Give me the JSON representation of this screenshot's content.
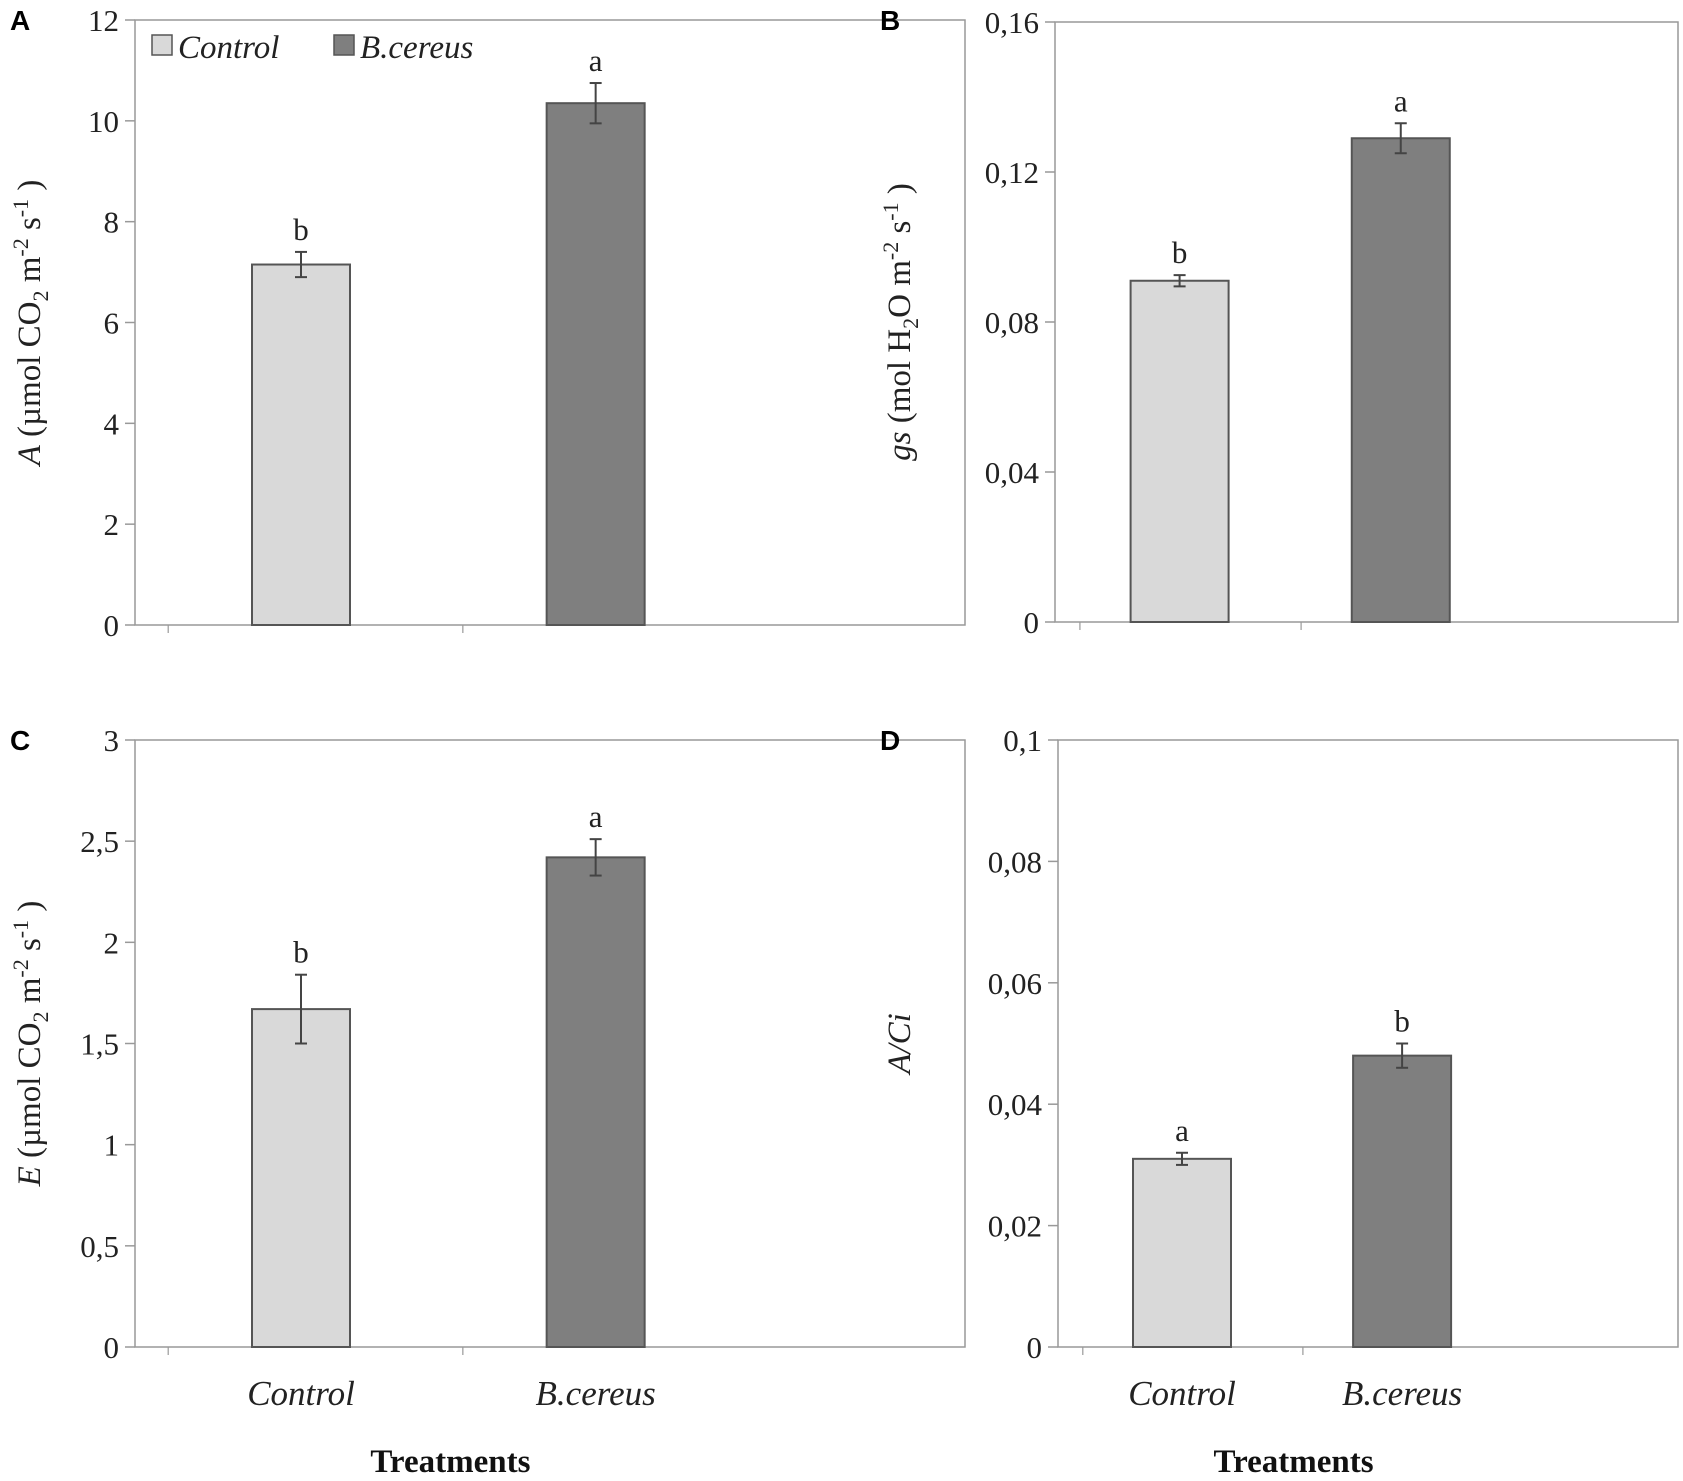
{
  "colors": {
    "control": "#d9d9d9",
    "bcereus": "#7f7f7f",
    "bar_border": "#555555",
    "axis": "#999999",
    "error_bar": "#444444"
  },
  "x_axis_label": "Treatments",
  "legend": [
    "Control",
    "B.cereus"
  ],
  "chart_data": [
    {
      "type": "bar",
      "panel": "A",
      "categories": [
        "Control",
        "B.cereus"
      ],
      "values": [
        7.15,
        10.35
      ],
      "errors": [
        0.25,
        0.4
      ],
      "significance": [
        "b",
        "a"
      ],
      "ylabel": {
        "symbol": "A",
        "unit_pre": " (µmol CO",
        "sub": "2",
        "unit_mid": " m",
        "sup1": "-2",
        "unit_post": " s",
        "sup2": "-1",
        "tail": " )"
      },
      "ylim": [
        0,
        12
      ],
      "yticks": [
        0,
        2,
        4,
        6,
        8,
        10,
        12
      ],
      "ytick_labels": [
        "0",
        "2",
        "4",
        "6",
        "8",
        "10",
        "12"
      ],
      "grid": false
    },
    {
      "type": "bar",
      "panel": "B",
      "categories": [
        "Control",
        "B.cereus"
      ],
      "values": [
        0.091,
        0.129
      ],
      "errors": [
        0.0015,
        0.004
      ],
      "significance": [
        "b",
        "a"
      ],
      "ylabel": {
        "symbol": "gs",
        "unit_pre": " (mol H",
        "sub": "2",
        "unit_mid": "O m",
        "sup1": "-2",
        "unit_post": " s",
        "sup2": "-1",
        "tail": " )"
      },
      "ylim": [
        0,
        0.16
      ],
      "yticks": [
        0,
        0.04,
        0.08,
        0.12,
        0.16
      ],
      "ytick_labels": [
        "0",
        "0,04",
        "0,08",
        "0,12",
        "0,16"
      ],
      "grid": false
    },
    {
      "type": "bar",
      "panel": "C",
      "categories": [
        "Control",
        "B.cereus"
      ],
      "values": [
        1.67,
        2.42
      ],
      "errors": [
        0.17,
        0.09
      ],
      "significance": [
        "b",
        "a"
      ],
      "ylabel": {
        "symbol": "E",
        "unit_pre": " (µmol CO",
        "sub": "2",
        "unit_mid": " m",
        "sup1": "-2",
        "unit_post": " s",
        "sup2": "-1",
        "tail": " )"
      },
      "ylim": [
        0,
        3
      ],
      "yticks": [
        0,
        0.5,
        1,
        1.5,
        2,
        2.5,
        3
      ],
      "ytick_labels": [
        "0",
        "0,5",
        "1",
        "1,5",
        "2",
        "2,5",
        "3"
      ],
      "grid": false
    },
    {
      "type": "bar",
      "panel": "D",
      "categories": [
        "Control",
        "B.cereus"
      ],
      "values": [
        0.031,
        0.048
      ],
      "errors": [
        0.001,
        0.002
      ],
      "significance": [
        "a",
        "b"
      ],
      "ylabel": {
        "symbol": "A/Ci",
        "unit_pre": "",
        "sub": "",
        "unit_mid": "",
        "sup1": "",
        "unit_post": "",
        "sup2": "",
        "tail": ""
      },
      "ylim": [
        0,
        0.1
      ],
      "yticks": [
        0,
        0.02,
        0.04,
        0.06,
        0.08,
        0.1
      ],
      "ytick_labels": [
        "0",
        "0,02",
        "0,04",
        "0,06",
        "0,08",
        "0,1"
      ],
      "grid": false
    }
  ]
}
